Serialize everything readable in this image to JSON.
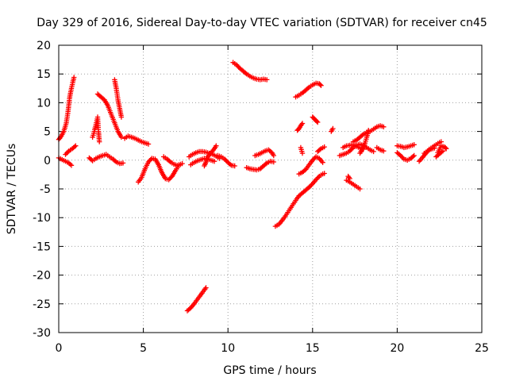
{
  "chart_data": {
    "type": "scatter",
    "title": "Day 329 of 2016, Sidereal Day-to-day VTEC variation (SDTVAR) for receiver cn45",
    "xlabel": "GPS time / hours",
    "ylabel": "SDTVAR / TECUs",
    "xlim": [
      0,
      25
    ],
    "ylim": [
      -30,
      20
    ],
    "xticks": [
      "0",
      "5",
      "10",
      "15",
      "20",
      "25"
    ],
    "yticks": [
      "-30",
      "-25",
      "-20",
      "-15",
      "-10",
      "-5",
      "0",
      "5",
      "10",
      "15",
      "20"
    ],
    "grid": true,
    "marker": "plus",
    "color": "#ff0000",
    "arcs": [
      [
        [
          0.0,
          3.6
        ],
        [
          0.15,
          4.2
        ],
        [
          0.3,
          5.0
        ],
        [
          0.45,
          6.5
        ],
        [
          0.55,
          8.5
        ],
        [
          0.65,
          11.0
        ],
        [
          0.75,
          12.5
        ],
        [
          0.85,
          13.8
        ],
        [
          0.9,
          14.4
        ]
      ],
      [
        [
          0.0,
          0.4
        ],
        [
          0.2,
          0.1
        ],
        [
          0.4,
          -0.2
        ],
        [
          0.6,
          -0.5
        ],
        [
          0.75,
          -0.9
        ]
      ],
      [
        [
          0.4,
          1.0
        ],
        [
          0.6,
          1.6
        ],
        [
          0.8,
          2.0
        ],
        [
          1.0,
          2.5
        ]
      ],
      [
        [
          1.8,
          0.4
        ],
        [
          2.0,
          -0.1
        ],
        [
          2.2,
          0.3
        ],
        [
          2.4,
          0.6
        ],
        [
          2.6,
          0.8
        ],
        [
          2.8,
          1.0
        ],
        [
          3.0,
          0.6
        ],
        [
          3.2,
          0.2
        ],
        [
          3.4,
          -0.3
        ],
        [
          3.6,
          -0.6
        ],
        [
          3.8,
          -0.5
        ]
      ],
      [
        [
          2.0,
          4.0
        ],
        [
          2.1,
          5.0
        ],
        [
          2.2,
          6.2
        ],
        [
          2.3,
          7.5
        ],
        [
          2.35,
          5.0
        ],
        [
          2.4,
          3.2
        ]
      ],
      [
        [
          2.3,
          11.5
        ],
        [
          2.5,
          11.0
        ],
        [
          2.7,
          10.5
        ],
        [
          2.9,
          9.5
        ],
        [
          3.1,
          8.0
        ],
        [
          3.3,
          6.5
        ],
        [
          3.5,
          5.0
        ],
        [
          3.7,
          4.0
        ]
      ],
      [
        [
          3.3,
          14.0
        ],
        [
          3.4,
          12.5
        ],
        [
          3.5,
          10.5
        ],
        [
          3.6,
          9.0
        ],
        [
          3.7,
          7.5
        ]
      ],
      [
        [
          3.9,
          3.8
        ],
        [
          4.1,
          4.2
        ],
        [
          4.3,
          4.0
        ],
        [
          4.5,
          3.8
        ],
        [
          4.7,
          3.5
        ],
        [
          4.9,
          3.2
        ],
        [
          5.1,
          3.0
        ],
        [
          5.3,
          2.8
        ]
      ],
      [
        [
          4.7,
          -3.8
        ],
        [
          4.9,
          -3.0
        ],
        [
          5.1,
          -1.5
        ],
        [
          5.3,
          -0.3
        ],
        [
          5.5,
          0.3
        ],
        [
          5.7,
          0.2
        ],
        [
          5.9,
          -0.8
        ],
        [
          6.1,
          -2.2
        ],
        [
          6.3,
          -3.2
        ],
        [
          6.5,
          -3.4
        ],
        [
          6.7,
          -2.8
        ],
        [
          6.9,
          -1.8
        ],
        [
          7.1,
          -0.9
        ]
      ],
      [
        [
          6.2,
          0.6
        ],
        [
          6.4,
          0.2
        ],
        [
          6.6,
          -0.3
        ],
        [
          6.8,
          -0.7
        ],
        [
          7.0,
          -0.9
        ],
        [
          7.3,
          -0.6
        ]
      ],
      [
        [
          7.6,
          -26.2
        ],
        [
          7.8,
          -25.7
        ],
        [
          8.0,
          -25.0
        ],
        [
          8.2,
          -24.2
        ],
        [
          8.4,
          -23.4
        ],
        [
          8.6,
          -22.6
        ],
        [
          8.7,
          -22.2
        ]
      ],
      [
        [
          7.7,
          0.6
        ],
        [
          7.9,
          1.0
        ],
        [
          8.1,
          1.3
        ],
        [
          8.3,
          1.5
        ],
        [
          8.5,
          1.5
        ],
        [
          8.7,
          1.4
        ],
        [
          8.9,
          1.2
        ],
        [
          9.1,
          1.0
        ],
        [
          9.3,
          0.7
        ],
        [
          9.5,
          0.3
        ]
      ],
      [
        [
          7.8,
          -0.8
        ],
        [
          8.0,
          -0.4
        ],
        [
          8.2,
          -0.1
        ],
        [
          8.4,
          0.1
        ],
        [
          8.6,
          0.3
        ],
        [
          8.8,
          0.2
        ],
        [
          9.0,
          0.0
        ],
        [
          9.2,
          -0.2
        ]
      ],
      [
        [
          8.6,
          -1.0
        ],
        [
          8.7,
          -0.3
        ],
        [
          8.8,
          0.6
        ],
        [
          9.0,
          1.3
        ],
        [
          9.2,
          2.0
        ],
        [
          9.3,
          2.5
        ]
      ],
      [
        [
          9.4,
          0.8
        ],
        [
          9.6,
          0.6
        ],
        [
          9.8,
          0.2
        ],
        [
          10.0,
          -0.4
        ],
        [
          10.2,
          -0.9
        ],
        [
          10.4,
          -1.0
        ]
      ],
      [
        [
          10.3,
          17.0
        ],
        [
          10.5,
          16.6
        ],
        [
          10.7,
          16.0
        ],
        [
          10.9,
          15.5
        ],
        [
          11.1,
          15.0
        ],
        [
          11.3,
          14.6
        ],
        [
          11.5,
          14.3
        ],
        [
          11.7,
          14.1
        ],
        [
          11.9,
          14.0
        ],
        [
          12.1,
          14.1
        ],
        [
          12.3,
          14.0
        ]
      ],
      [
        [
          11.1,
          -1.3
        ],
        [
          11.3,
          -1.5
        ],
        [
          11.5,
          -1.6
        ],
        [
          11.7,
          -1.7
        ],
        [
          11.9,
          -1.5
        ],
        [
          12.1,
          -1.0
        ],
        [
          12.3,
          -0.5
        ],
        [
          12.5,
          -0.2
        ],
        [
          12.7,
          -0.3
        ]
      ],
      [
        [
          11.6,
          0.8
        ],
        [
          11.8,
          1.0
        ],
        [
          12.0,
          1.3
        ],
        [
          12.2,
          1.6
        ],
        [
          12.4,
          1.8
        ],
        [
          12.6,
          1.3
        ],
        [
          12.7,
          0.8
        ]
      ],
      [
        [
          12.8,
          -11.5
        ],
        [
          13.0,
          -11.2
        ],
        [
          13.2,
          -10.5
        ],
        [
          13.4,
          -9.7
        ],
        [
          13.6,
          -8.8
        ],
        [
          13.8,
          -7.9
        ],
        [
          14.0,
          -7.0
        ],
        [
          14.2,
          -6.2
        ],
        [
          14.4,
          -5.7
        ],
        [
          14.6,
          -5.2
        ],
        [
          14.8,
          -4.7
        ],
        [
          15.0,
          -4.1
        ],
        [
          15.2,
          -3.4
        ],
        [
          15.4,
          -2.8
        ],
        [
          15.6,
          -2.4
        ],
        [
          15.7,
          -2.3
        ]
      ],
      [
        [
          14.0,
          11.0
        ],
        [
          14.2,
          11.3
        ],
        [
          14.4,
          11.7
        ],
        [
          14.6,
          12.2
        ],
        [
          14.8,
          12.7
        ],
        [
          15.0,
          13.1
        ],
        [
          15.2,
          13.4
        ],
        [
          15.4,
          13.3
        ],
        [
          15.5,
          13.0
        ]
      ],
      [
        [
          14.1,
          5.2
        ],
        [
          14.2,
          5.5
        ],
        [
          14.3,
          6.0
        ],
        [
          14.4,
          6.4
        ]
      ],
      [
        [
          14.3,
          2.2
        ],
        [
          14.4,
          1.2
        ]
      ],
      [
        [
          14.2,
          -2.4
        ],
        [
          14.4,
          -2.1
        ],
        [
          14.6,
          -1.6
        ],
        [
          14.8,
          -0.8
        ],
        [
          15.0,
          0.0
        ],
        [
          15.2,
          0.6
        ],
        [
          15.4,
          0.3
        ],
        [
          15.6,
          -0.4
        ]
      ],
      [
        [
          15.0,
          7.5
        ],
        [
          15.1,
          7.2
        ],
        [
          15.2,
          6.9
        ],
        [
          15.3,
          6.6
        ]
      ],
      [
        [
          15.3,
          1.5
        ],
        [
          15.5,
          2.0
        ],
        [
          15.7,
          2.3
        ]
      ],
      [
        [
          16.1,
          5.0
        ],
        [
          16.2,
          5.5
        ]
      ],
      [
        [
          16.6,
          0.8
        ],
        [
          16.8,
          1.0
        ],
        [
          17.0,
          1.2
        ],
        [
          17.2,
          1.6
        ],
        [
          17.4,
          2.2
        ],
        [
          17.6,
          2.6
        ],
        [
          17.8,
          2.8
        ],
        [
          18.0,
          2.5
        ],
        [
          18.2,
          2.2
        ],
        [
          18.4,
          1.8
        ],
        [
          18.6,
          1.5
        ]
      ],
      [
        [
          16.8,
          2.2
        ],
        [
          17.0,
          2.5
        ],
        [
          17.2,
          2.6
        ],
        [
          17.4,
          2.7
        ],
        [
          17.6,
          2.4
        ],
        [
          17.8,
          2.1
        ],
        [
          18.0,
          1.9
        ]
      ],
      [
        [
          17.4,
          3.2
        ],
        [
          17.6,
          3.5
        ],
        [
          17.8,
          4.0
        ],
        [
          18.0,
          4.5
        ],
        [
          18.2,
          4.8
        ],
        [
          18.4,
          5.0
        ],
        [
          18.6,
          5.4
        ],
        [
          18.8,
          5.8
        ],
        [
          19.0,
          6.0
        ],
        [
          19.2,
          5.8
        ]
      ],
      [
        [
          18.8,
          2.2
        ],
        [
          19.0,
          1.8
        ],
        [
          19.2,
          1.6
        ]
      ],
      [
        [
          17.8,
          1.2
        ],
        [
          18.0,
          2.2
        ],
        [
          18.1,
          3.0
        ],
        [
          18.2,
          4.0
        ],
        [
          18.3,
          5.2
        ]
      ],
      [
        [
          17.0,
          -3.5
        ],
        [
          17.2,
          -3.8
        ],
        [
          17.4,
          -4.2
        ],
        [
          17.6,
          -4.6
        ],
        [
          17.8,
          -5.0
        ]
      ],
      [
        [
          17.1,
          -2.8
        ],
        [
          17.2,
          -3.2
        ]
      ],
      [
        [
          20.0,
          2.5
        ],
        [
          20.2,
          2.4
        ],
        [
          20.4,
          2.2
        ],
        [
          20.6,
          2.3
        ],
        [
          20.8,
          2.5
        ],
        [
          21.0,
          2.7
        ]
      ],
      [
        [
          20.0,
          1.3
        ],
        [
          20.2,
          0.8
        ],
        [
          20.4,
          0.2
        ],
        [
          20.6,
          0.0
        ],
        [
          20.8,
          0.3
        ],
        [
          21.0,
          0.8
        ]
      ],
      [
        [
          21.3,
          -0.2
        ],
        [
          21.5,
          0.5
        ],
        [
          21.7,
          1.2
        ],
        [
          21.9,
          1.9
        ],
        [
          22.1,
          2.3
        ],
        [
          22.3,
          2.7
        ],
        [
          22.5,
          3.1
        ],
        [
          22.6,
          3.2
        ]
      ],
      [
        [
          21.6,
          1.2
        ],
        [
          21.8,
          1.6
        ],
        [
          22.0,
          1.9
        ],
        [
          22.2,
          2.1
        ]
      ],
      [
        [
          22.4,
          1.3
        ],
        [
          22.5,
          1.9
        ],
        [
          22.6,
          2.5
        ],
        [
          22.8,
          2.3
        ],
        [
          22.9,
          2.0
        ]
      ],
      [
        [
          22.3,
          0.6
        ],
        [
          22.5,
          1.1
        ],
        [
          22.7,
          1.6
        ]
      ]
    ]
  }
}
